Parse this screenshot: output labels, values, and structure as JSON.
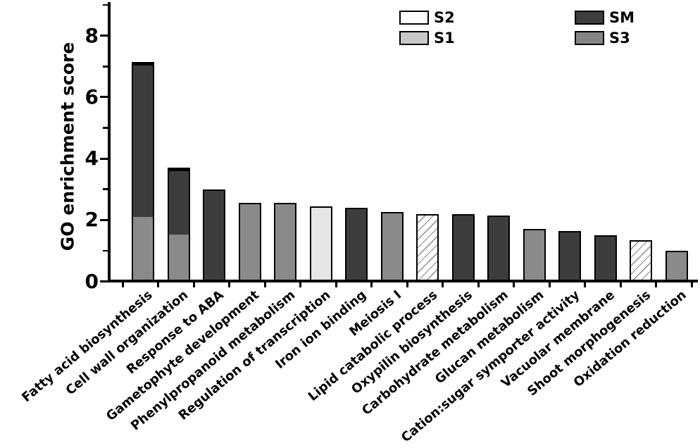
{
  "figure": {
    "background_color": "#ffffff",
    "axis_color": "#000000",
    "text_color": "#000000"
  },
  "legend": {
    "position": "top",
    "items": [
      {
        "label": "S2",
        "style": "hatched",
        "fill": "#ffffff",
        "hatch_color": "#8a8a8a"
      },
      {
        "label": "S1",
        "style": "solid",
        "fill": "#c9c9c9"
      },
      {
        "label": "SM",
        "style": "solid",
        "fill": "#3d3d3d"
      },
      {
        "label": "S3",
        "style": "solid",
        "fill": "#858585"
      }
    ]
  },
  "chart_data": {
    "type": "bar",
    "stacked": true,
    "title": "",
    "xlabel": "",
    "ylabel": "GO enrichment score",
    "ylim": [
      0,
      9
    ],
    "yticks_major": [
      0,
      2,
      4,
      6,
      8
    ],
    "yticks_minor": [
      1,
      3,
      5,
      7,
      9
    ],
    "grid": false,
    "legend_entries": [
      "S2",
      "S1",
      "SM",
      "S3"
    ],
    "series_colors": {
      "SM": "#3d3d3d",
      "S3": "#8a8a8a",
      "S1": "#e6e6e6",
      "S2": "hatched"
    },
    "categories": [
      "Fatty acid biosynthesis",
      "Cell wall organization",
      "Response to ABA",
      "Gametophyte development",
      "Phenylpropanoid metabolism",
      "Regulation of transcription",
      "Iron ion binding",
      "Meiosis I",
      "Lipid catabolic process",
      "Oxypilin biosynthesis",
      "Carbohydrate metabolism",
      "Glucan metabolism",
      "Cation:sugar symporter activity",
      "Vacuolar membrane",
      "Shoot morphogenesis",
      "Oxidation reduction"
    ],
    "bars": [
      {
        "category": "Fatty acid biosynthesis",
        "total": 7.15,
        "segments": [
          {
            "series": "S3",
            "value": 2.1
          },
          {
            "series": "SM",
            "value": 5.05
          }
        ]
      },
      {
        "category": "Cell wall organization",
        "total": 3.7,
        "segments": [
          {
            "series": "S3",
            "value": 1.55
          },
          {
            "series": "SM",
            "value": 2.15
          }
        ]
      },
      {
        "category": "Response to ABA",
        "total": 3.0,
        "segments": [
          {
            "series": "SM",
            "value": 3.0
          }
        ]
      },
      {
        "category": "Gametophyte development",
        "total": 2.55,
        "segments": [
          {
            "series": "S3",
            "value": 2.55
          }
        ]
      },
      {
        "category": "Phenylpropanoid metabolism",
        "total": 2.55,
        "segments": [
          {
            "series": "S3",
            "value": 2.55
          }
        ]
      },
      {
        "category": "Regulation of transcription",
        "total": 2.45,
        "segments": [
          {
            "series": "S1",
            "value": 2.45
          }
        ]
      },
      {
        "category": "Iron ion binding",
        "total": 2.4,
        "segments": [
          {
            "series": "SM",
            "value": 2.4
          }
        ]
      },
      {
        "category": "Meiosis I",
        "total": 2.25,
        "segments": [
          {
            "series": "S3",
            "value": 2.25
          }
        ]
      },
      {
        "category": "Lipid catabolic process",
        "total": 2.2,
        "segments": [
          {
            "series": "S2",
            "value": 2.2
          }
        ]
      },
      {
        "category": "Oxypilin biosynthesis",
        "total": 2.18,
        "segments": [
          {
            "series": "SM",
            "value": 2.18
          }
        ]
      },
      {
        "category": "Carbohydrate metabolism",
        "total": 2.15,
        "segments": [
          {
            "series": "SM",
            "value": 2.15
          }
        ]
      },
      {
        "category": "Glucan metabolism",
        "total": 1.7,
        "segments": [
          {
            "series": "S3",
            "value": 1.7
          }
        ]
      },
      {
        "category": "Cation:sugar symporter activity",
        "total": 1.65,
        "segments": [
          {
            "series": "SM",
            "value": 1.65
          }
        ]
      },
      {
        "category": "Vacuolar membrane",
        "total": 1.5,
        "segments": [
          {
            "series": "SM",
            "value": 1.5
          }
        ]
      },
      {
        "category": "Shoot morphogenesis",
        "total": 1.35,
        "segments": [
          {
            "series": "S2",
            "value": 1.35
          }
        ]
      },
      {
        "category": "Oxidation reduction",
        "total": 1.0,
        "segments": [
          {
            "series": "S3",
            "value": 1.0
          }
        ]
      }
    ]
  }
}
